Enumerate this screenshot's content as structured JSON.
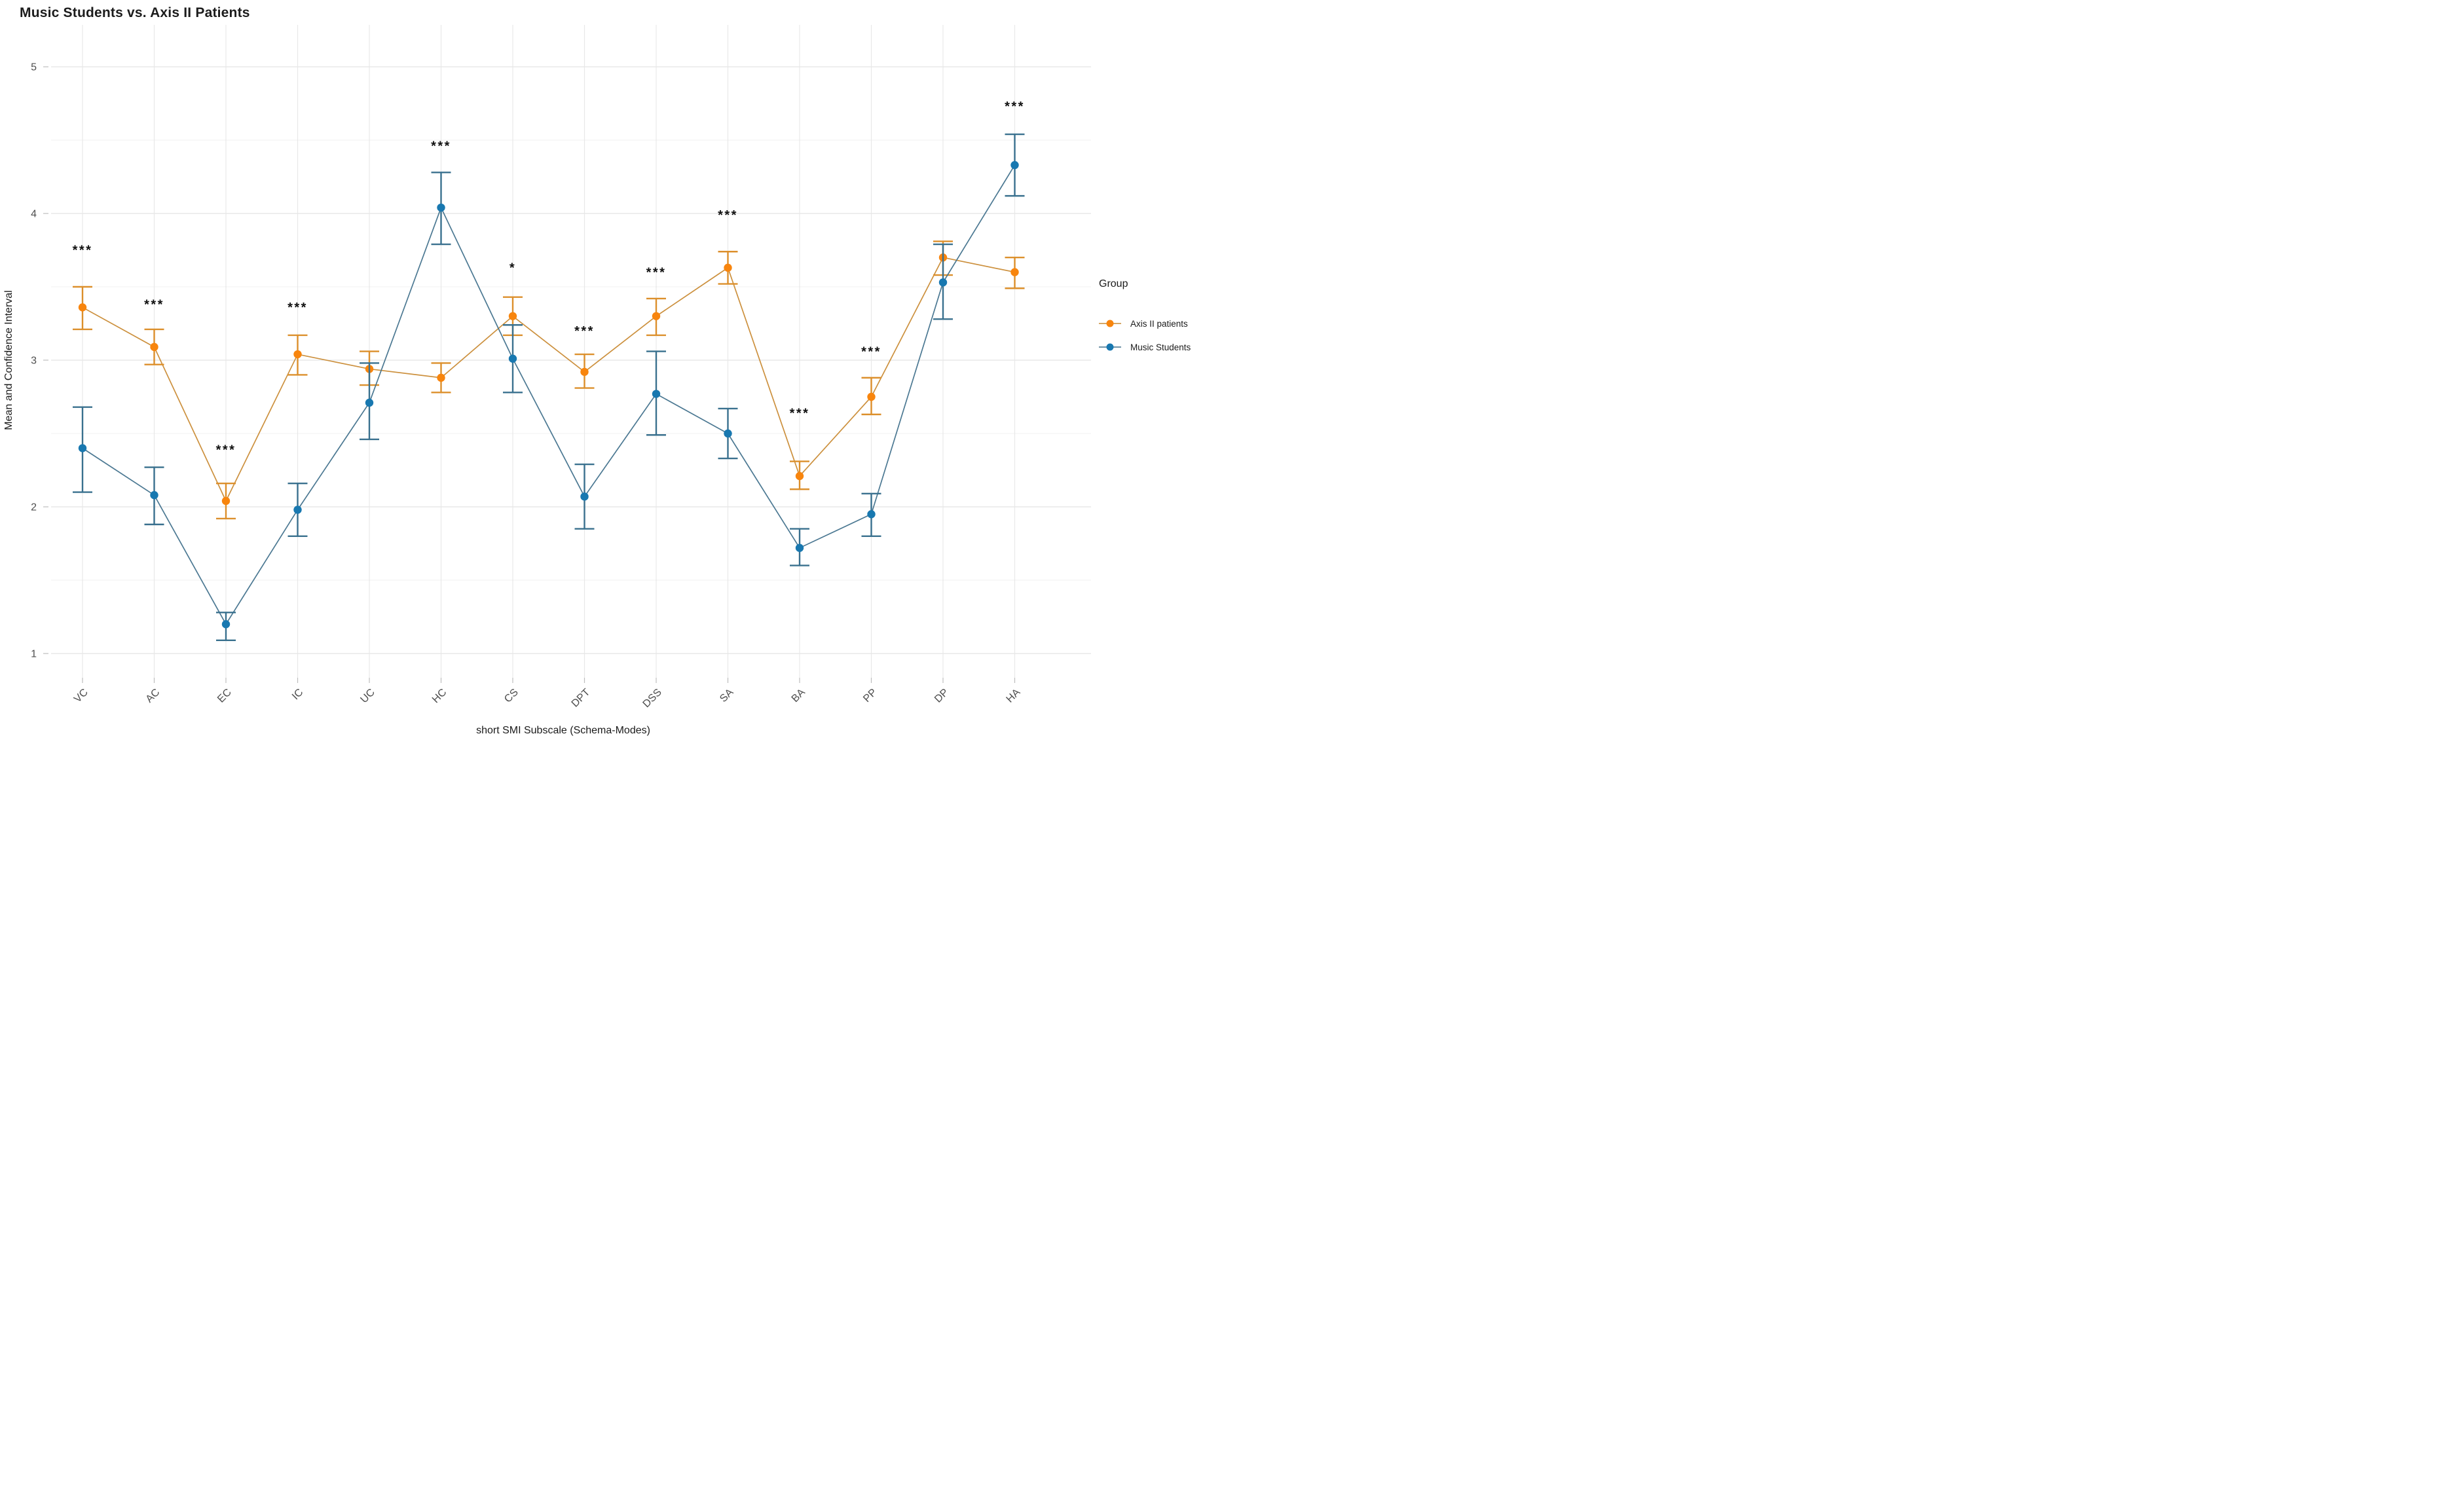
{
  "chart_data": {
    "type": "line",
    "title": "Music Students vs. Axis II Patients",
    "xlabel": "short SMI Subscale (Schema-Modes)",
    "ylabel": "Mean and Confidence Interval",
    "ylim": [
      1,
      5
    ],
    "yticks": [
      1,
      2,
      3,
      4,
      5
    ],
    "grid": "on",
    "categories": [
      "VC",
      "AC",
      "EC",
      "IC",
      "UC",
      "HC",
      "CS",
      "DPT",
      "DSS",
      "SA",
      "BA",
      "PP",
      "DP",
      "HA"
    ],
    "series": [
      {
        "name": "Axis II patients",
        "color": "#F8850D",
        "line_color": "#C98A33",
        "bar_color": "#DC8F2B",
        "values": [
          3.36,
          3.09,
          2.04,
          3.04,
          2.94,
          2.88,
          3.3,
          2.92,
          3.3,
          3.63,
          2.21,
          2.75,
          3.7,
          3.6
        ],
        "ci_low": [
          3.21,
          2.97,
          1.92,
          2.9,
          2.83,
          2.78,
          3.17,
          2.81,
          3.17,
          3.52,
          2.12,
          2.63,
          3.58,
          3.49
        ],
        "ci_high": [
          3.5,
          3.21,
          2.16,
          3.17,
          3.06,
          2.98,
          3.43,
          3.04,
          3.42,
          3.74,
          2.31,
          2.88,
          3.81,
          3.7
        ]
      },
      {
        "name": "Music Students",
        "color": "#1878B0",
        "line_color": "#41718C",
        "bar_color": "#39708E",
        "values": [
          2.4,
          2.08,
          1.2,
          1.98,
          2.71,
          4.04,
          3.01,
          2.07,
          2.77,
          2.5,
          1.72,
          1.95,
          3.53,
          4.33
        ],
        "ci_low": [
          2.1,
          1.88,
          1.09,
          1.8,
          2.46,
          3.79,
          2.78,
          1.85,
          2.49,
          2.33,
          1.6,
          1.8,
          3.28,
          4.12
        ],
        "ci_high": [
          2.68,
          2.27,
          1.28,
          2.16,
          2.98,
          4.28,
          3.24,
          2.29,
          3.06,
          2.67,
          1.85,
          2.09,
          3.79,
          4.54
        ]
      }
    ],
    "significance": [
      {
        "category": "VC",
        "label": "***",
        "y": 3.72
      },
      {
        "category": "AC",
        "label": "***",
        "y": 3.35
      },
      {
        "category": "EC",
        "label": "***",
        "y": 2.36
      },
      {
        "category": "IC",
        "label": "***",
        "y": 3.33
      },
      {
        "category": "UC",
        "label": null,
        "y": null
      },
      {
        "category": "HC",
        "label": "***",
        "y": 4.43
      },
      {
        "category": "CS",
        "label": "*",
        "y": 3.6
      },
      {
        "category": "DPT",
        "label": "***",
        "y": 3.17
      },
      {
        "category": "DSS",
        "label": "***",
        "y": 3.57
      },
      {
        "category": "SA",
        "label": "***",
        "y": 3.96
      },
      {
        "category": "BA",
        "label": "***",
        "y": 2.61
      },
      {
        "category": "PP",
        "label": "***",
        "y": 3.03
      },
      {
        "category": "DP",
        "label": null,
        "y": null
      },
      {
        "category": "HA",
        "label": "***",
        "y": 4.7
      }
    ],
    "legend": {
      "title": "Group",
      "position": "right",
      "entries": [
        "Axis II patients",
        "Music Students"
      ]
    },
    "colors": {
      "background": "#FFFFFF",
      "grid_major": "#E3E3E3",
      "grid_minor": "#F0F0F0",
      "grid_vertical": "#E8E8E8",
      "tick_text": "#4E4E4E",
      "axis_title": "#1A1A1A",
      "title_text": "#1C1C1C",
      "stars": "#111111"
    }
  }
}
